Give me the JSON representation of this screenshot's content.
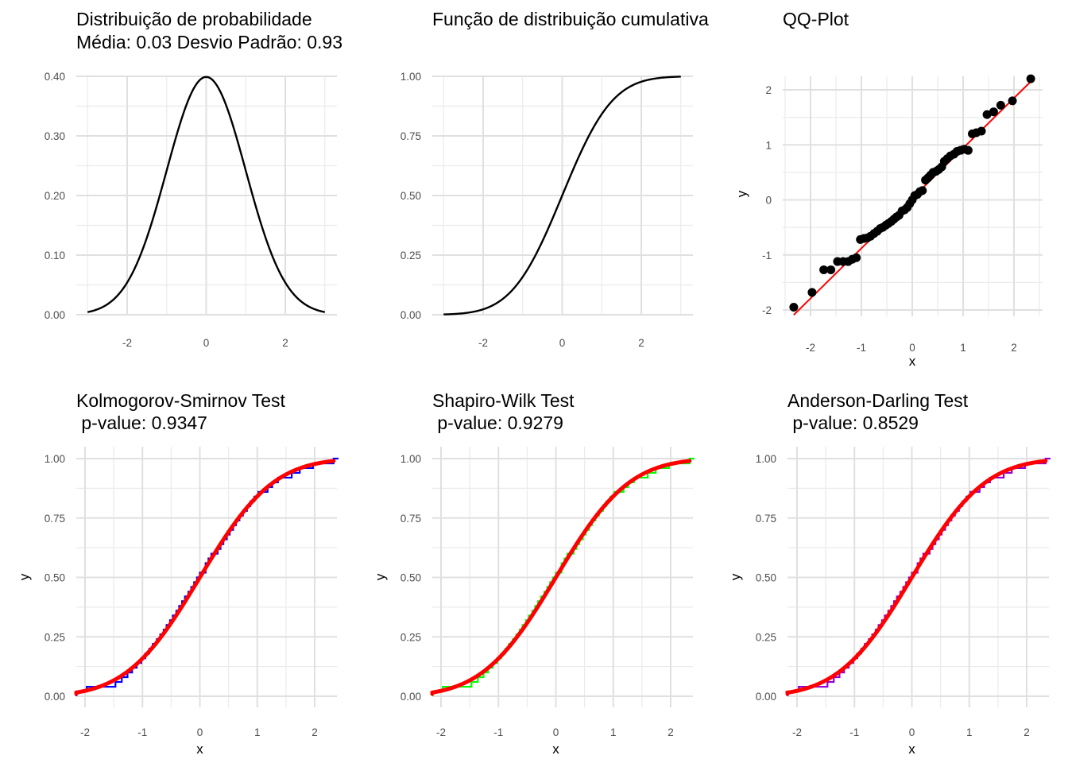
{
  "chart_data": [
    {
      "type": "line",
      "title": "Distribuição de probabilidade",
      "subtitle": "Média: 0.03 Desvio Padrão: 0.93",
      "xlabel": "",
      "ylabel": "",
      "xlim": [
        -3,
        3
      ],
      "ylim": [
        0,
        0.4
      ],
      "x_ticks": [
        -2,
        0,
        2
      ],
      "x_tick_labels": [
        "-2",
        "0",
        "2"
      ],
      "y_ticks": [
        0,
        0.1,
        0.2,
        0.3,
        0.4
      ],
      "y_tick_labels": [
        "0.00",
        "0.10",
        "0.20",
        "0.30",
        "0.40"
      ],
      "grid": true,
      "series": [
        {
          "curve": "normal_pdf",
          "mean": 0,
          "sd": 1,
          "x": [
            -3,
            -2.5,
            -2,
            -1.5,
            -1,
            -0.5,
            0,
            0.5,
            1,
            1.5,
            2,
            2.5,
            3
          ],
          "y": [
            0.004,
            0.018,
            0.054,
            0.13,
            0.242,
            0.352,
            0.399,
            0.352,
            0.242,
            0.13,
            0.054,
            0.018,
            0.004
          ],
          "color": "#000000"
        }
      ]
    },
    {
      "type": "line",
      "title": "Função de distribuição cumulativa",
      "subtitle": "",
      "xlabel": "",
      "ylabel": "",
      "xlim": [
        -3,
        3
      ],
      "ylim": [
        0,
        1
      ],
      "x_ticks": [
        -2,
        0,
        2
      ],
      "x_tick_labels": [
        "-2",
        "0",
        "2"
      ],
      "y_ticks": [
        0,
        0.25,
        0.5,
        0.75,
        1
      ],
      "y_tick_labels": [
        "0.00",
        "0.25",
        "0.50",
        "0.75",
        "1.00"
      ],
      "grid": true,
      "series": [
        {
          "curve": "normal_cdf",
          "mean": 0,
          "sd": 1,
          "x": [
            -3,
            -2,
            -1,
            0,
            1,
            2,
            3
          ],
          "y": [
            0.001,
            0.023,
            0.159,
            0.5,
            0.841,
            0.977,
            0.999
          ],
          "color": "#000000"
        }
      ]
    },
    {
      "type": "scatter",
      "title": "QQ-Plot",
      "subtitle": "",
      "xlabel": "x",
      "ylabel": "y",
      "xlim": [
        -2.4,
        2.4
      ],
      "ylim": [
        -2.15,
        2.3
      ],
      "x_ticks": [
        -2,
        -1,
        0,
        1,
        2
      ],
      "x_tick_labels": [
        "-2",
        "-1",
        "0",
        "1",
        "2"
      ],
      "y_ticks": [
        -2,
        -1,
        0,
        1,
        2
      ],
      "y_tick_labels": [
        "-2",
        "-1",
        "0",
        "1",
        "2"
      ],
      "grid": true,
      "points": {
        "color": "#000000",
        "x": [
          -2.33,
          -1.97,
          -1.74,
          -1.6,
          -1.47,
          -1.36,
          -1.26,
          -1.18,
          -1.1,
          -1.02,
          -0.95,
          -0.88,
          -0.82,
          -0.75,
          -0.69,
          -0.63,
          -0.58,
          -0.52,
          -0.47,
          -0.41,
          -0.36,
          -0.31,
          -0.26,
          -0.2,
          -0.15,
          -0.1,
          -0.05,
          0,
          0.05,
          0.1,
          0.15,
          0.2,
          0.26,
          0.31,
          0.36,
          0.41,
          0.47,
          0.52,
          0.58,
          0.63,
          0.69,
          0.75,
          0.82,
          0.88,
          0.95,
          1.02,
          1.1,
          1.18,
          1.26,
          1.36,
          1.47,
          1.6,
          1.74,
          1.97,
          2.33
        ],
        "y": [
          -1.95,
          -1.68,
          -1.27,
          -1.27,
          -1.12,
          -1.12,
          -1.12,
          -1.08,
          -1.05,
          -0.72,
          -0.7,
          -0.69,
          -0.66,
          -0.61,
          -0.57,
          -0.52,
          -0.5,
          -0.46,
          -0.43,
          -0.39,
          -0.35,
          -0.31,
          -0.28,
          -0.2,
          -0.18,
          -0.14,
          -0.07,
          0,
          0.08,
          0.1,
          0.15,
          0.17,
          0.36,
          0.4,
          0.45,
          0.5,
          0.52,
          0.55,
          0.6,
          0.7,
          0.75,
          0.8,
          0.83,
          0.88,
          0.9,
          0.92,
          0.9,
          1.2,
          1.22,
          1.25,
          1.55,
          1.6,
          1.72,
          1.8,
          2.2
        ]
      },
      "line": {
        "color": "#ff0000",
        "x": [
          -2.33,
          2.33
        ],
        "y": [
          -2.09,
          2.15
        ]
      }
    },
    {
      "type": "line",
      "title": "Kolmogorov-Smirnov Test",
      "subtitle": " p-value: 0.9347",
      "xlabel": "x",
      "ylabel": "y",
      "xlim": [
        -2.2,
        2.4
      ],
      "ylim": [
        0,
        1
      ],
      "x_ticks": [
        -2,
        -1,
        0,
        1,
        2
      ],
      "x_tick_labels": [
        "-2",
        "-1",
        "0",
        "1",
        "2"
      ],
      "y_ticks": [
        0,
        0.25,
        0.5,
        0.75,
        1
      ],
      "y_tick_labels": [
        "0.00",
        "0.25",
        "0.50",
        "0.75",
        "1.00"
      ],
      "grid": true,
      "ecdf": {
        "color": "#0000ff",
        "x": [
          -2.33,
          -1.97,
          -1.74,
          -1.6,
          -1.47,
          -1.36,
          -1.26,
          -1.18,
          -1.1,
          -1.02,
          -0.95,
          -0.88,
          -0.82,
          -0.75,
          -0.69,
          -0.63,
          -0.58,
          -0.52,
          -0.47,
          -0.41,
          -0.36,
          -0.31,
          -0.26,
          -0.2,
          -0.15,
          -0.1,
          -0.05,
          0,
          0.05,
          0.1,
          0.15,
          0.2,
          0.26,
          0.31,
          0.36,
          0.41,
          0.47,
          0.52,
          0.58,
          0.63,
          0.69,
          0.75,
          0.82,
          0.88,
          0.95,
          1.02,
          1.1,
          1.18,
          1.26,
          1.36,
          1.47,
          1.6,
          1.74,
          1.97,
          2.33
        ],
        "y": [
          0.02,
          0.04,
          0.04,
          0.04,
          0.06,
          0.08,
          0.1,
          0.12,
          0.14,
          0.16,
          0.18,
          0.2,
          0.22,
          0.24,
          0.26,
          0.28,
          0.3,
          0.32,
          0.34,
          0.36,
          0.38,
          0.4,
          0.42,
          0.44,
          0.46,
          0.48,
          0.5,
          0.52,
          0.52,
          0.56,
          0.58,
          0.6,
          0.6,
          0.62,
          0.64,
          0.66,
          0.68,
          0.7,
          0.72,
          0.74,
          0.76,
          0.78,
          0.8,
          0.82,
          0.84,
          0.86,
          0.86,
          0.88,
          0.9,
          0.92,
          0.92,
          0.94,
          0.96,
          0.98,
          1
        ]
      },
      "cdf": {
        "color": "#ff0000",
        "curve": "normal_cdf",
        "mean": 0,
        "sd": 1
      }
    },
    {
      "type": "line",
      "title": "Shapiro-Wilk Test",
      "subtitle": " p-value: 0.9279",
      "xlabel": "x",
      "ylabel": "y",
      "xlim": [
        -2.2,
        2.4
      ],
      "ylim": [
        0,
        1
      ],
      "x_ticks": [
        -2,
        -1,
        0,
        1,
        2
      ],
      "x_tick_labels": [
        "-2",
        "-1",
        "0",
        "1",
        "2"
      ],
      "y_ticks": [
        0,
        0.25,
        0.5,
        0.75,
        1
      ],
      "y_tick_labels": [
        "0.00",
        "0.25",
        "0.50",
        "0.75",
        "1.00"
      ],
      "grid": true,
      "ecdf": {
        "color": "#00ff00",
        "x": [
          -2.33,
          -1.97,
          -1.74,
          -1.6,
          -1.47,
          -1.36,
          -1.26,
          -1.18,
          -1.1,
          -1.02,
          -0.95,
          -0.88,
          -0.82,
          -0.75,
          -0.69,
          -0.63,
          -0.58,
          -0.52,
          -0.47,
          -0.41,
          -0.36,
          -0.31,
          -0.26,
          -0.2,
          -0.15,
          -0.1,
          -0.05,
          0,
          0.05,
          0.1,
          0.15,
          0.2,
          0.26,
          0.31,
          0.36,
          0.41,
          0.47,
          0.52,
          0.58,
          0.63,
          0.69,
          0.75,
          0.82,
          0.88,
          0.95,
          1.02,
          1.1,
          1.18,
          1.26,
          1.36,
          1.47,
          1.6,
          1.74,
          1.97,
          2.33
        ],
        "y": [
          0.02,
          0.04,
          0.04,
          0.04,
          0.06,
          0.08,
          0.1,
          0.12,
          0.14,
          0.16,
          0.18,
          0.2,
          0.22,
          0.24,
          0.26,
          0.28,
          0.3,
          0.32,
          0.34,
          0.36,
          0.38,
          0.4,
          0.42,
          0.44,
          0.46,
          0.48,
          0.5,
          0.52,
          0.52,
          0.56,
          0.58,
          0.6,
          0.6,
          0.62,
          0.64,
          0.66,
          0.68,
          0.7,
          0.72,
          0.74,
          0.76,
          0.78,
          0.8,
          0.82,
          0.84,
          0.86,
          0.86,
          0.88,
          0.9,
          0.92,
          0.92,
          0.94,
          0.96,
          0.98,
          1
        ]
      },
      "cdf": {
        "color": "#ff0000",
        "curve": "normal_cdf",
        "mean": 0,
        "sd": 1
      }
    },
    {
      "type": "line",
      "title": "Anderson-Darling Test",
      "subtitle": " p-value: 0.8529",
      "xlabel": "x",
      "ylabel": "y",
      "xlim": [
        -2.2,
        2.4
      ],
      "ylim": [
        0,
        1
      ],
      "x_ticks": [
        -2,
        -1,
        0,
        1,
        2
      ],
      "x_tick_labels": [
        "-2",
        "-1",
        "0",
        "1",
        "2"
      ],
      "y_ticks": [
        0,
        0.25,
        0.5,
        0.75,
        1
      ],
      "y_tick_labels": [
        "0.00",
        "0.25",
        "0.50",
        "0.75",
        "1.00"
      ],
      "grid": true,
      "ecdf": {
        "color": "#9400d3",
        "x": [
          -2.33,
          -1.97,
          -1.74,
          -1.6,
          -1.47,
          -1.36,
          -1.26,
          -1.18,
          -1.1,
          -1.02,
          -0.95,
          -0.88,
          -0.82,
          -0.75,
          -0.69,
          -0.63,
          -0.58,
          -0.52,
          -0.47,
          -0.41,
          -0.36,
          -0.31,
          -0.26,
          -0.2,
          -0.15,
          -0.1,
          -0.05,
          0,
          0.05,
          0.1,
          0.15,
          0.2,
          0.26,
          0.31,
          0.36,
          0.41,
          0.47,
          0.52,
          0.58,
          0.63,
          0.69,
          0.75,
          0.82,
          0.88,
          0.95,
          1.02,
          1.1,
          1.18,
          1.26,
          1.36,
          1.47,
          1.6,
          1.74,
          1.97,
          2.33
        ],
        "y": [
          0.02,
          0.04,
          0.04,
          0.04,
          0.06,
          0.08,
          0.1,
          0.12,
          0.14,
          0.16,
          0.18,
          0.2,
          0.22,
          0.24,
          0.26,
          0.28,
          0.3,
          0.32,
          0.34,
          0.36,
          0.38,
          0.4,
          0.42,
          0.44,
          0.46,
          0.48,
          0.5,
          0.52,
          0.52,
          0.56,
          0.58,
          0.6,
          0.6,
          0.62,
          0.64,
          0.66,
          0.68,
          0.7,
          0.72,
          0.74,
          0.76,
          0.78,
          0.8,
          0.82,
          0.84,
          0.86,
          0.86,
          0.88,
          0.9,
          0.92,
          0.92,
          0.94,
          0.96,
          0.98,
          1
        ]
      },
      "cdf": {
        "color": "#ff0000",
        "curve": "normal_cdf",
        "mean": 0,
        "sd": 1
      }
    }
  ]
}
